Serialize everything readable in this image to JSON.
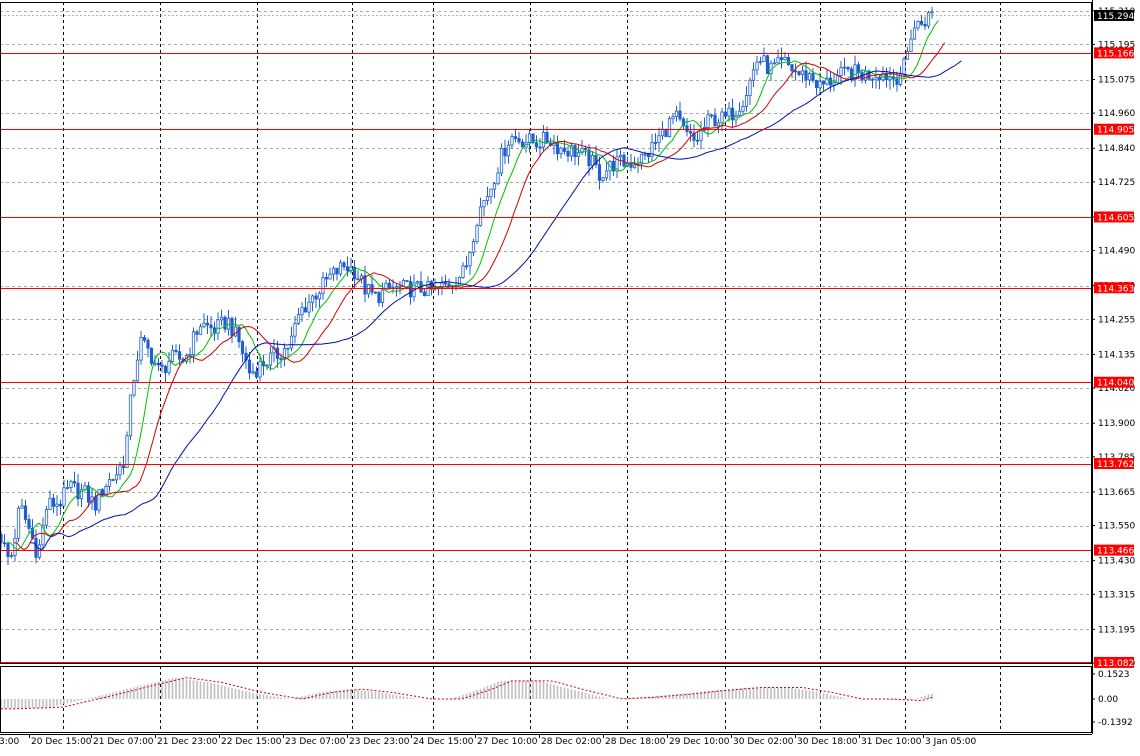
{
  "chart_data": [
    {
      "type": "candlestick",
      "name": "price",
      "y_ticks": [
        "115.310",
        "115.195",
        "115.075",
        "114.960",
        "114.840",
        "114.725",
        "114.605",
        "114.490",
        "114.370",
        "114.255",
        "114.135",
        "114.020",
        "113.900",
        "113.785",
        "113.665",
        "113.550",
        "113.430",
        "113.315",
        "113.195",
        "113.080"
      ],
      "x_ticks": [
        "3:00",
        "20 Dec 15:00",
        "21 Dec 07:00",
        "21 Dec 23:00",
        "22 Dec 15:00",
        "23 Dec 07:00",
        "23 Dec 23:00",
        "24 Dec 15:00",
        "27 Dec 10:00",
        "28 Dec 02:00",
        "28 Dec 18:00",
        "29 Dec 10:00",
        "30 Dec 02:00",
        "30 Dec 18:00",
        "31 Dec 10:00",
        "3 Jan 05:00"
      ],
      "ylim": [
        113.08,
        115.34
      ],
      "current_price": "115.294",
      "levels": [
        "115.166",
        "114.905",
        "114.605",
        "114.363",
        "114.040",
        "113.762",
        "113.466",
        "113.082"
      ],
      "colors": {
        "candle": "#1f5fcf",
        "ma_fast": "#00c000",
        "ma_mid": "#d00000",
        "ma_slow": "#0010b0",
        "level": "#ff0000",
        "grid": "#aaaaaa"
      },
      "close_anchors": [
        {
          "x": 0,
          "y": 113.52
        },
        {
          "x": 10,
          "y": 113.42
        },
        {
          "x": 20,
          "y": 113.62
        },
        {
          "x": 30,
          "y": 113.53
        },
        {
          "x": 38,
          "y": 113.45
        },
        {
          "x": 47,
          "y": 113.62
        },
        {
          "x": 60,
          "y": 113.63
        },
        {
          "x": 70,
          "y": 113.68
        },
        {
          "x": 85,
          "y": 113.66
        },
        {
          "x": 95,
          "y": 113.62
        },
        {
          "x": 105,
          "y": 113.69
        },
        {
          "x": 115,
          "y": 113.72
        },
        {
          "x": 125,
          "y": 113.78
        },
        {
          "x": 132,
          "y": 114.02
        },
        {
          "x": 140,
          "y": 114.18
        },
        {
          "x": 150,
          "y": 114.14
        },
        {
          "x": 160,
          "y": 114.07
        },
        {
          "x": 170,
          "y": 114.12
        },
        {
          "x": 185,
          "y": 114.12
        },
        {
          "x": 200,
          "y": 114.24
        },
        {
          "x": 215,
          "y": 114.22
        },
        {
          "x": 228,
          "y": 114.25
        },
        {
          "x": 240,
          "y": 114.17
        },
        {
          "x": 250,
          "y": 114.07
        },
        {
          "x": 265,
          "y": 114.11
        },
        {
          "x": 280,
          "y": 114.14
        },
        {
          "x": 290,
          "y": 114.17
        },
        {
          "x": 300,
          "y": 114.28
        },
        {
          "x": 315,
          "y": 114.34
        },
        {
          "x": 330,
          "y": 114.4
        },
        {
          "x": 345,
          "y": 114.44
        },
        {
          "x": 355,
          "y": 114.42
        },
        {
          "x": 365,
          "y": 114.36
        },
        {
          "x": 375,
          "y": 114.33
        },
        {
          "x": 390,
          "y": 114.36
        },
        {
          "x": 405,
          "y": 114.36
        },
        {
          "x": 420,
          "y": 114.36
        },
        {
          "x": 435,
          "y": 114.35
        },
        {
          "x": 450,
          "y": 114.38
        },
        {
          "x": 465,
          "y": 114.42
        },
        {
          "x": 478,
          "y": 114.62
        },
        {
          "x": 490,
          "y": 114.7
        },
        {
          "x": 500,
          "y": 114.8
        },
        {
          "x": 510,
          "y": 114.88
        },
        {
          "x": 520,
          "y": 114.87
        },
        {
          "x": 535,
          "y": 114.86
        },
        {
          "x": 550,
          "y": 114.87
        },
        {
          "x": 560,
          "y": 114.84
        },
        {
          "x": 575,
          "y": 114.83
        },
        {
          "x": 590,
          "y": 114.8
        },
        {
          "x": 600,
          "y": 114.75
        },
        {
          "x": 615,
          "y": 114.79
        },
        {
          "x": 630,
          "y": 114.79
        },
        {
          "x": 645,
          "y": 114.81
        },
        {
          "x": 660,
          "y": 114.88
        },
        {
          "x": 675,
          "y": 114.95
        },
        {
          "x": 685,
          "y": 114.89
        },
        {
          "x": 695,
          "y": 114.86
        },
        {
          "x": 710,
          "y": 114.94
        },
        {
          "x": 725,
          "y": 114.94
        },
        {
          "x": 735,
          "y": 114.97
        },
        {
          "x": 745,
          "y": 115.02
        },
        {
          "x": 758,
          "y": 115.15
        },
        {
          "x": 770,
          "y": 115.11
        },
        {
          "x": 785,
          "y": 115.13
        },
        {
          "x": 800,
          "y": 115.09
        },
        {
          "x": 810,
          "y": 115.09
        },
        {
          "x": 820,
          "y": 115.05
        },
        {
          "x": 835,
          "y": 115.08
        },
        {
          "x": 850,
          "y": 115.1
        },
        {
          "x": 865,
          "y": 115.09
        },
        {
          "x": 880,
          "y": 115.1
        },
        {
          "x": 895,
          "y": 115.08
        },
        {
          "x": 905,
          "y": 115.12
        },
        {
          "x": 912,
          "y": 115.25
        },
        {
          "x": 922,
          "y": 115.27
        },
        {
          "x": 932,
          "y": 115.3
        }
      ]
    },
    {
      "type": "histogram",
      "name": "oscillator",
      "y_ticks": [
        "0.1523",
        "0.00",
        "-0.1392"
      ],
      "ylim": [
        -0.2,
        0.2
      ],
      "x_values": [
        0,
        50,
        100,
        140,
        175,
        210,
        250,
        290,
        320,
        350,
        380,
        420,
        450,
        480,
        500,
        540,
        570,
        610,
        640,
        680,
        710,
        750,
        790,
        820,
        850,
        880,
        910,
        930
      ],
      "values": [
        -0.06,
        -0.05,
        0.02,
        0.08,
        0.13,
        0.1,
        0.04,
        0.0,
        0.04,
        0.06,
        0.04,
        0.0,
        0.0,
        0.06,
        0.11,
        0.11,
        0.06,
        0.0,
        0.01,
        0.03,
        0.05,
        0.07,
        0.07,
        0.04,
        0.0,
        0.0,
        -0.01,
        0.03
      ]
    }
  ]
}
